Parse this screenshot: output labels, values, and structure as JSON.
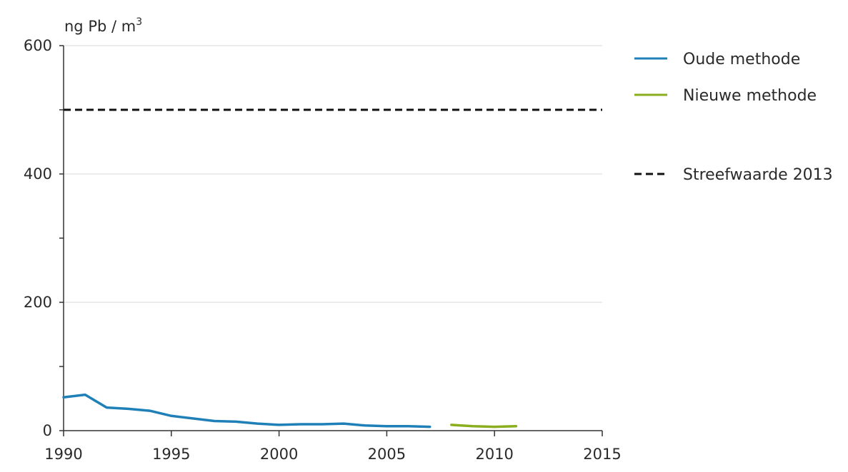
{
  "chart_data": {
    "type": "line",
    "ylabel": "ng Pb / m",
    "ylabel_superscript": "3",
    "xlim": [
      1990,
      2015
    ],
    "ylim": [
      0,
      600
    ],
    "xticks": [
      "1990",
      "1995",
      "2000",
      "2005",
      "2010",
      "2015"
    ],
    "yticks": [
      "0",
      "200",
      "400",
      "600"
    ],
    "grid": "horizontal",
    "legend_position": "right",
    "series": [
      {
        "name": "Oude methode",
        "color": "#1f80b8",
        "x": [
          1990,
          1991,
          1992,
          1993,
          1994,
          1995,
          1996,
          1997,
          1998,
          1999,
          2000,
          2001,
          2002,
          2003,
          2004,
          2005,
          2006,
          2007
        ],
        "y": [
          52,
          56,
          36,
          34,
          31,
          23,
          19,
          15,
          14,
          11,
          9,
          10,
          10,
          11,
          8,
          7,
          7,
          6
        ]
      },
      {
        "name": "Nieuwe methode",
        "color": "#8aae1e",
        "x": [
          2008,
          2009,
          2010,
          2011
        ],
        "y": [
          9,
          7,
          6,
          7
        ]
      }
    ],
    "reference_lines": [
      {
        "name": "Streefwaarde 2013",
        "y": 500,
        "color": "#111111",
        "style": "dashed"
      }
    ]
  }
}
